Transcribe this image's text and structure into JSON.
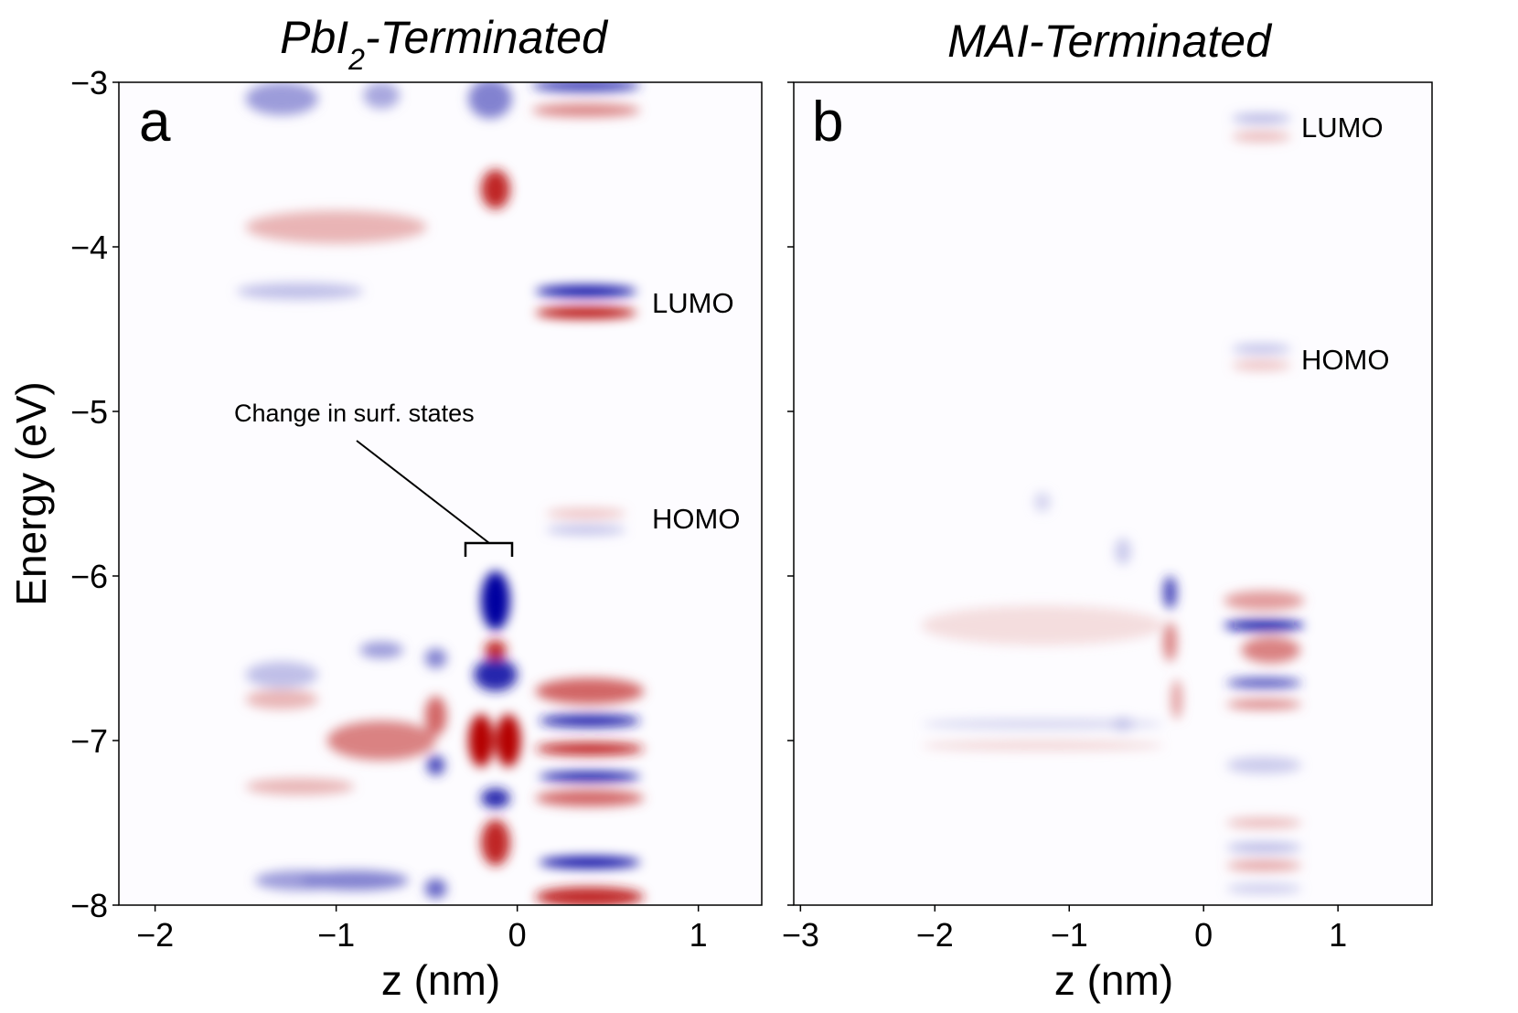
{
  "chart_data": [
    {
      "type": "heatmap",
      "panel": "a",
      "title": "PbI2-Terminated",
      "title_main": "PbI",
      "title_sub": "2",
      "title_rest": "-Terminated",
      "xlabel": "z (nm)",
      "ylabel": "Energy (eV)",
      "xlim": [
        -2.2,
        1.35
      ],
      "ylim": [
        -8,
        -3
      ],
      "xticks": [
        -2,
        -1,
        0,
        1
      ],
      "yticks": [
        -3,
        -4,
        -5,
        -6,
        -7,
        -8
      ],
      "annotations": [
        {
          "text": "LUMO",
          "x": 0.78,
          "y": -4.35
        },
        {
          "text": "HOMO",
          "x": 0.78,
          "y": -5.65
        },
        {
          "text": "Change in surf. states",
          "x": -1.5,
          "y": -5.0,
          "arrow_to": [
            -0.12,
            -5.82
          ],
          "bracket": [
            -0.24,
            0.02,
            -5.82
          ]
        }
      ],
      "colormap": "bwr (blue = negative, red = positive)",
      "features": [
        {
          "z": 0.38,
          "e": -3.02,
          "sign": -1,
          "amp": 0.8,
          "wz": 0.3,
          "we": 0.04
        },
        {
          "z": 0.38,
          "e": -3.17,
          "sign": 1,
          "amp": 0.6,
          "wz": 0.3,
          "we": 0.04
        },
        {
          "z": 0.38,
          "e": -4.27,
          "sign": -1,
          "amp": 1.0,
          "wz": 0.28,
          "we": 0.035
        },
        {
          "z": 0.38,
          "e": -4.4,
          "sign": 1,
          "amp": 1.0,
          "wz": 0.28,
          "we": 0.035
        },
        {
          "z": 0.38,
          "e": -5.62,
          "sign": 1,
          "amp": 0.35,
          "wz": 0.22,
          "we": 0.03
        },
        {
          "z": 0.38,
          "e": -5.72,
          "sign": -1,
          "amp": 0.35,
          "wz": 0.22,
          "we": 0.03
        },
        {
          "z": -0.12,
          "e": -3.65,
          "sign": 1,
          "amp": 0.9,
          "wz": 0.08,
          "we": 0.12
        },
        {
          "z": -0.12,
          "e": -6.15,
          "sign": -1,
          "amp": 1.0,
          "wz": 0.08,
          "we": 0.18
        },
        {
          "z": -0.12,
          "e": -6.6,
          "sign": -1,
          "amp": 0.9,
          "wz": 0.12,
          "we": 0.1
        },
        {
          "z": -0.12,
          "e": -6.45,
          "sign": 1,
          "amp": 0.9,
          "wz": 0.06,
          "we": 0.06
        },
        {
          "z": -0.2,
          "e": -7.0,
          "sign": 1,
          "amp": 1.0,
          "wz": 0.07,
          "we": 0.16
        },
        {
          "z": -0.05,
          "e": -7.0,
          "sign": 1,
          "amp": 1.0,
          "wz": 0.07,
          "we": 0.16
        },
        {
          "z": -0.12,
          "e": -7.35,
          "sign": -1,
          "amp": 0.9,
          "wz": 0.08,
          "we": 0.06
        },
        {
          "z": -0.12,
          "e": -7.62,
          "sign": 1,
          "amp": 0.9,
          "wz": 0.08,
          "we": 0.14
        },
        {
          "z": -0.45,
          "e": -7.15,
          "sign": -1,
          "amp": 0.8,
          "wz": 0.05,
          "we": 0.06
        },
        {
          "z": -0.45,
          "e": -6.85,
          "sign": 1,
          "amp": 0.7,
          "wz": 0.06,
          "we": 0.12
        },
        {
          "z": -0.45,
          "e": -7.9,
          "sign": -1,
          "amp": 0.7,
          "wz": 0.06,
          "we": 0.06
        },
        {
          "z": -0.45,
          "e": -6.5,
          "sign": -1,
          "amp": 0.6,
          "wz": 0.06,
          "we": 0.06
        },
        {
          "z": -0.75,
          "e": -6.45,
          "sign": -1,
          "amp": 0.5,
          "wz": 0.12,
          "we": 0.05
        },
        {
          "z": -0.75,
          "e": -7.0,
          "sign": 1,
          "amp": 0.6,
          "wz": 0.3,
          "we": 0.12
        },
        {
          "z": -0.9,
          "e": -7.85,
          "sign": -1,
          "amp": 0.6,
          "wz": 0.3,
          "we": 0.06
        },
        {
          "z": 0.4,
          "e": -6.88,
          "sign": -1,
          "amp": 0.9,
          "wz": 0.28,
          "we": 0.04
        },
        {
          "z": 0.4,
          "e": -7.05,
          "sign": 1,
          "amp": 0.9,
          "wz": 0.3,
          "we": 0.04
        },
        {
          "z": 0.4,
          "e": -7.22,
          "sign": -1,
          "amp": 1.0,
          "wz": 0.28,
          "we": 0.03
        },
        {
          "z": 0.4,
          "e": -7.35,
          "sign": 1,
          "amp": 0.7,
          "wz": 0.3,
          "we": 0.05
        },
        {
          "z": 0.4,
          "e": -6.7,
          "sign": 1,
          "amp": 0.7,
          "wz": 0.3,
          "we": 0.08
        },
        {
          "z": 0.4,
          "e": -7.74,
          "sign": -1,
          "amp": 1.0,
          "wz": 0.28,
          "we": 0.035
        },
        {
          "z": 0.4,
          "e": -7.95,
          "sign": 1,
          "amp": 0.9,
          "wz": 0.3,
          "we": 0.06
        },
        {
          "z": -1.2,
          "e": -4.27,
          "sign": -1,
          "amp": 0.35,
          "wz": 0.35,
          "we": 0.05
        },
        {
          "z": -1.0,
          "e": -3.88,
          "sign": 1,
          "amp": 0.4,
          "wz": 0.5,
          "we": 0.1
        },
        {
          "z": -1.3,
          "e": -3.1,
          "sign": -1,
          "amp": 0.5,
          "wz": 0.2,
          "we": 0.1
        },
        {
          "z": -0.75,
          "e": -3.08,
          "sign": -1,
          "amp": 0.45,
          "wz": 0.1,
          "we": 0.08
        },
        {
          "z": -0.15,
          "e": -3.1,
          "sign": -1,
          "amp": 0.6,
          "wz": 0.12,
          "we": 0.12
        },
        {
          "z": -1.3,
          "e": -6.6,
          "sign": -1,
          "amp": 0.35,
          "wz": 0.2,
          "we": 0.08
        },
        {
          "z": -1.3,
          "e": -6.75,
          "sign": 1,
          "amp": 0.4,
          "wz": 0.2,
          "we": 0.06
        },
        {
          "z": -1.2,
          "e": -7.28,
          "sign": 1,
          "amp": 0.4,
          "wz": 0.3,
          "we": 0.05
        },
        {
          "z": -1.2,
          "e": -7.85,
          "sign": -1,
          "amp": 0.5,
          "wz": 0.25,
          "we": 0.06
        }
      ]
    },
    {
      "type": "heatmap",
      "panel": "b",
      "title": "MAI-Terminated",
      "xlabel": "z (nm)",
      "ylabel": "",
      "xlim": [
        -3.05,
        1.7
      ],
      "ylim": [
        -8,
        -3
      ],
      "xticks": [
        -3,
        -2,
        -1,
        0,
        1
      ],
      "annotations": [
        {
          "text": "LUMO",
          "x": 0.7,
          "y": -3.27
        },
        {
          "text": "HOMO",
          "x": 0.7,
          "y": -4.68
        }
      ],
      "colormap": "bwr (blue = negative, red = positive)",
      "features": [
        {
          "z": 0.43,
          "e": -3.22,
          "sign": -1,
          "amp": 0.4,
          "wz": 0.22,
          "we": 0.03
        },
        {
          "z": 0.43,
          "e": -3.33,
          "sign": 1,
          "amp": 0.4,
          "wz": 0.22,
          "we": 0.03
        },
        {
          "z": 0.43,
          "e": -4.62,
          "sign": -1,
          "amp": 0.35,
          "wz": 0.22,
          "we": 0.03
        },
        {
          "z": 0.43,
          "e": -4.72,
          "sign": 1,
          "amp": 0.35,
          "wz": 0.22,
          "we": 0.03
        },
        {
          "z": 0.45,
          "e": -6.3,
          "sign": -1,
          "amp": 0.95,
          "wz": 0.3,
          "we": 0.035
        },
        {
          "z": 0.45,
          "e": -6.15,
          "sign": 1,
          "amp": 0.5,
          "wz": 0.3,
          "we": 0.06
        },
        {
          "z": 0.5,
          "e": -6.45,
          "sign": 1,
          "amp": 0.6,
          "wz": 0.22,
          "we": 0.08
        },
        {
          "z": 0.45,
          "e": -6.65,
          "sign": -1,
          "amp": 0.8,
          "wz": 0.28,
          "we": 0.03
        },
        {
          "z": 0.45,
          "e": -6.78,
          "sign": 1,
          "amp": 0.6,
          "wz": 0.28,
          "we": 0.03
        },
        {
          "z": 0.45,
          "e": -7.15,
          "sign": -1,
          "amp": 0.3,
          "wz": 0.28,
          "we": 0.05
        },
        {
          "z": 0.45,
          "e": -7.5,
          "sign": 1,
          "amp": 0.4,
          "wz": 0.28,
          "we": 0.03
        },
        {
          "z": 0.45,
          "e": -7.65,
          "sign": -1,
          "amp": 0.4,
          "wz": 0.28,
          "we": 0.03
        },
        {
          "z": 0.45,
          "e": -7.76,
          "sign": 1,
          "amp": 0.5,
          "wz": 0.28,
          "we": 0.03
        },
        {
          "z": 0.45,
          "e": -7.9,
          "sign": -1,
          "amp": 0.3,
          "wz": 0.28,
          "we": 0.03
        },
        {
          "z": -0.25,
          "e": -6.1,
          "sign": -1,
          "amp": 0.8,
          "wz": 0.05,
          "we": 0.1
        },
        {
          "z": -0.25,
          "e": -6.4,
          "sign": 1,
          "amp": 0.6,
          "wz": 0.05,
          "we": 0.12
        },
        {
          "z": -0.2,
          "e": -6.75,
          "sign": 1,
          "amp": 0.5,
          "wz": 0.04,
          "we": 0.12
        },
        {
          "z": -1.2,
          "e": -6.9,
          "sign": -1,
          "amp": 0.25,
          "wz": 0.9,
          "we": 0.03
        },
        {
          "z": -1.2,
          "e": -7.03,
          "sign": 1,
          "amp": 0.25,
          "wz": 0.9,
          "we": 0.03
        },
        {
          "z": -1.2,
          "e": -6.3,
          "sign": 1,
          "amp": 0.2,
          "wz": 0.9,
          "we": 0.12
        },
        {
          "z": -1.2,
          "e": -5.55,
          "sign": -1,
          "amp": 0.25,
          "wz": 0.06,
          "we": 0.06
        },
        {
          "z": -0.6,
          "e": -5.85,
          "sign": -1,
          "amp": 0.3,
          "wz": 0.06,
          "we": 0.08
        },
        {
          "z": -0.6,
          "e": -6.9,
          "sign": -1,
          "amp": 0.3,
          "wz": 0.08,
          "we": 0.04
        }
      ]
    }
  ]
}
